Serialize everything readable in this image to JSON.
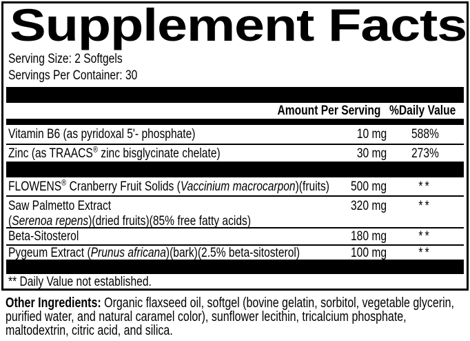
{
  "panel": {
    "title": "Supplement Facts",
    "serving_size": "Serving Size: 2 Softgels",
    "servings_per_container": "Servings Per Container: 30",
    "columns": {
      "amount": "Amount Per Serving",
      "daily_value": "%Daily Value"
    },
    "rows": [
      {
        "name": [
          {
            "text": "Vitamin B6 (as pyridoxal 5'- phosphate)"
          }
        ],
        "amount": "10 mg",
        "dv": "588%"
      },
      {
        "name": [
          {
            "text": "Zinc (as TRAACS"
          },
          {
            "text": "®",
            "sup": true
          },
          {
            "text": " zinc bisglycinate chelate)"
          }
        ],
        "amount": "30 mg",
        "dv": "273%"
      },
      {
        "name": [
          {
            "text": "FLOWENS"
          },
          {
            "text": "®",
            "sup": true
          },
          {
            "text": " Cranberry Fruit Solids ("
          },
          {
            "text": "Vaccinium macrocarpon",
            "italic": true
          },
          {
            "text": ")(fruits)"
          }
        ],
        "amount": "500 mg",
        "dv": "**"
      },
      {
        "name": [
          {
            "text": "Saw Palmetto Extract"
          }
        ],
        "name_line2": [
          {
            "text": "("
          },
          {
            "text": "Serenoa repens",
            "italic": true
          },
          {
            "text": ")(dried fruits)(85% free fatty acids)"
          }
        ],
        "amount": "320 mg",
        "dv": "**"
      },
      {
        "name": [
          {
            "text": "Beta-Sitosterol"
          }
        ],
        "amount": "180 mg",
        "dv": "**"
      },
      {
        "name": [
          {
            "text": "Pygeum Extract ("
          },
          {
            "text": "Prunus africana",
            "italic": true
          },
          {
            "text": ")(bark)(2.5% beta-sitosterol)"
          }
        ],
        "amount": "100 mg",
        "dv": "**"
      }
    ],
    "footnote": "** Daily Value not established.",
    "colors": {
      "ink": "#000000",
      "background": "#ffffff"
    }
  },
  "footer": {
    "other_ingredients": [
      {
        "text": "Other Ingredients:",
        "bold": true
      },
      {
        "text": " Organic flaxseed oil, softgel (bovine gelatin, sorbitol, vegetable glycerin, purified water, and natural caramel color), sunflower lecithin, tricalcium phosphate, maltodextrin, citric acid, and silica."
      }
    ]
  }
}
